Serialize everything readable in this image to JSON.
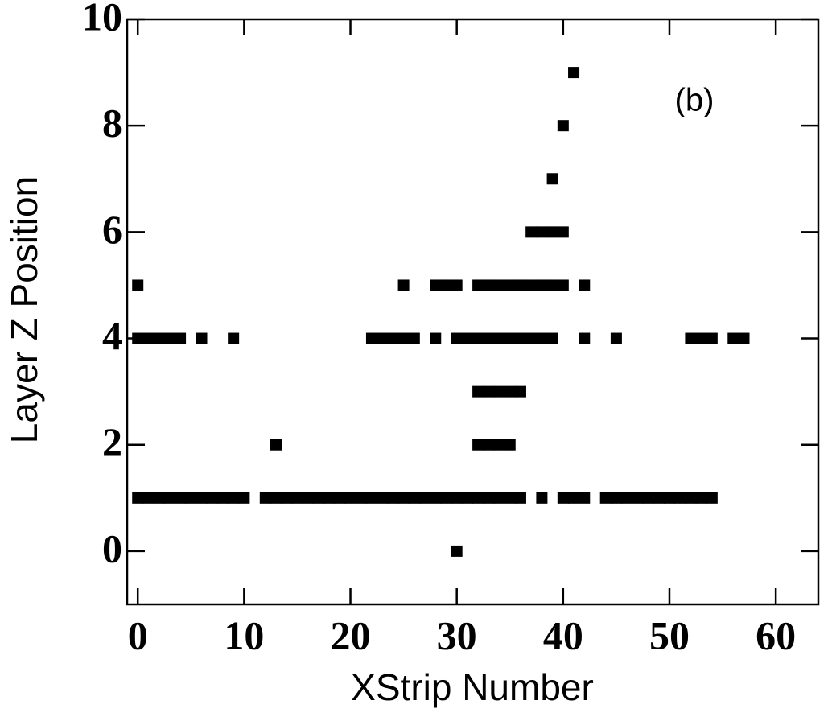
{
  "chart_data": {
    "type": "scatter",
    "x_label": "XStrip Number",
    "y_label": "Layer Z Position",
    "annotation": "(b)",
    "xlim": [
      -1,
      64
    ],
    "ylim": [
      -1,
      10
    ],
    "xticks": [
      0,
      10,
      20,
      30,
      40,
      50,
      60
    ],
    "yticks": [
      0,
      2,
      4,
      6,
      8,
      10
    ],
    "color": "#000000",
    "x": [
      41,
      40,
      39,
      37,
      38,
      39,
      40,
      0,
      25,
      28,
      29,
      30,
      32,
      33,
      34,
      35,
      36,
      37,
      38,
      39,
      40,
      42,
      0,
      1,
      2,
      3,
      4,
      6,
      9,
      22,
      23,
      24,
      25,
      26,
      28,
      30,
      31,
      32,
      33,
      34,
      35,
      36,
      37,
      38,
      39,
      42,
      45,
      52,
      53,
      54,
      56,
      57,
      32,
      33,
      34,
      35,
      36,
      13,
      32,
      33,
      34,
      35,
      0,
      1,
      2,
      3,
      4,
      5,
      6,
      7,
      8,
      9,
      10,
      12,
      13,
      14,
      15,
      16,
      17,
      18,
      19,
      20,
      21,
      22,
      23,
      24,
      25,
      26,
      27,
      28,
      29,
      30,
      31,
      32,
      33,
      34,
      35,
      36,
      38,
      40,
      41,
      42,
      44,
      45,
      46,
      47,
      48,
      49,
      50,
      51,
      52,
      53,
      54,
      30
    ],
    "values": [
      9,
      8,
      7,
      6,
      6,
      6,
      6,
      5,
      5,
      5,
      5,
      5,
      5,
      5,
      5,
      5,
      5,
      5,
      5,
      5,
      5,
      5,
      4,
      4,
      4,
      4,
      4,
      4,
      4,
      4,
      4,
      4,
      4,
      4,
      4,
      4,
      4,
      4,
      4,
      4,
      4,
      4,
      4,
      4,
      4,
      4,
      4,
      4,
      4,
      4,
      4,
      4,
      3,
      3,
      3,
      3,
      3,
      2,
      2,
      2,
      2,
      2,
      1,
      1,
      1,
      1,
      1,
      1,
      1,
      1,
      1,
      1,
      1,
      1,
      1,
      1,
      1,
      1,
      1,
      1,
      1,
      1,
      1,
      1,
      1,
      1,
      1,
      1,
      1,
      1,
      1,
      1,
      1,
      1,
      1,
      1,
      1,
      1,
      1,
      1,
      1,
      1,
      1,
      1,
      1,
      1,
      1,
      1,
      1,
      1,
      1,
      1,
      1,
      0
    ]
  }
}
